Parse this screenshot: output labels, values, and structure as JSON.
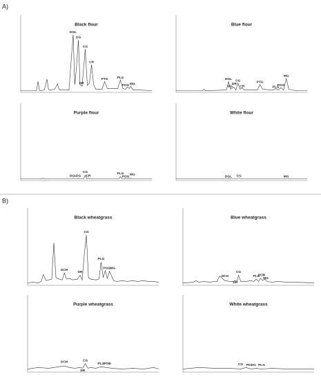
{
  "labels": [
    "A)",
    "B)"
  ],
  "chart_data": [
    {
      "type": "line",
      "title": "Black flour",
      "xlim": [
        0,
        25
      ],
      "ylim": [
        0,
        100
      ],
      "series": [
        {
          "color": "#333333",
          "x": [
            0,
            2,
            3,
            3.3,
            3.6,
            4.5,
            5,
            5.3,
            5.6,
            6.5,
            7,
            7.3,
            7.6,
            9.2,
            9.6,
            10,
            10.3,
            10.6,
            11,
            11.3,
            11.7,
            12.3,
            12.7,
            13.1,
            13.5,
            13.9,
            14.3,
            15.5,
            16,
            16.5,
            18.5,
            19,
            19.5,
            20,
            20.3,
            20.7,
            21,
            21.4,
            23,
            25
          ],
          "values": [
            2,
            2,
            2,
            14,
            2,
            3,
            17,
            4,
            3,
            4,
            11,
            4,
            3,
            3,
            40,
            75,
            10,
            30,
            68,
            10,
            8,
            56,
            9,
            12,
            36,
            10,
            4,
            4,
            14,
            5,
            5,
            16,
            5,
            4,
            7,
            5,
            8,
            3,
            3,
            2
          ]
        }
      ],
      "annotations": [
        {
          "text": "DGL",
          "x": 10,
          "y": 78
        },
        {
          "text": "DG",
          "x": 11,
          "y": 71
        },
        {
          "text": "CG",
          "x": 12.3,
          "y": 59
        },
        {
          "text": "CR",
          "x": 13.5,
          "y": 39
        },
        {
          "text": "DR",
          "x": 11.6,
          "y": 12
        },
        {
          "text": "PTG",
          "x": 16,
          "y": 17
        },
        {
          "text": "PLG",
          "x": 19,
          "y": 19
        },
        {
          "text": "POG",
          "x": 20,
          "y": 9
        },
        {
          "text": "MG",
          "x": 21.3,
          "y": 11
        }
      ]
    },
    {
      "type": "line",
      "title": "Blue flour",
      "xlim": [
        0,
        25
      ],
      "ylim": [
        0,
        100
      ],
      "series": [
        {
          "color": "#333333",
          "x": [
            0,
            4,
            5,
            5.3,
            5.6,
            9,
            9.6,
            10,
            10.4,
            11,
            11.4,
            11.8,
            12.2,
            12.6,
            13,
            13.4,
            13.8,
            15.5,
            16,
            16.5,
            18.5,
            19,
            19.5,
            20,
            20.5,
            21,
            21.5,
            23,
            25
          ],
          "values": [
            2,
            2,
            2,
            4,
            2,
            3,
            3,
            14,
            4,
            7,
            3,
            12,
            4,
            6,
            3,
            3,
            3,
            3,
            10,
            4,
            3,
            5,
            3,
            6,
            3,
            18,
            4,
            2,
            2
          ]
        }
      ],
      "annotations": [
        {
          "text": "DGL",
          "x": 10,
          "y": 17
        },
        {
          "text": "DG",
          "x": 10.3,
          "y": 8
        },
        {
          "text": "DR",
          "x": 11.1,
          "y": 11
        },
        {
          "text": "CG",
          "x": 11.8,
          "y": 15
        },
        {
          "text": "CR",
          "x": 12.6,
          "y": 8
        },
        {
          "text": "PTG",
          "x": 16,
          "y": 13
        },
        {
          "text": "PLG",
          "x": 19,
          "y": 7
        },
        {
          "text": "POG",
          "x": 20,
          "y": 9
        },
        {
          "text": "MG",
          "x": 21,
          "y": 21
        }
      ]
    },
    {
      "type": "line",
      "title": "Purple flour",
      "xlim": [
        0,
        25
      ],
      "ylim": [
        0,
        100
      ],
      "series": [
        {
          "color": "#333333",
          "x": [
            0,
            4,
            4.3,
            4.6,
            9.7,
            10,
            10.3,
            10.8,
            11,
            11.3,
            12,
            12.3,
            12.6,
            12.9,
            13.2,
            18.7,
            19,
            19.3,
            19.8,
            20,
            20.3,
            20.8,
            21,
            21.3,
            25
          ],
          "values": [
            2,
            2,
            3,
            2,
            2,
            3,
            2,
            2,
            3,
            2,
            2,
            7,
            2,
            3,
            2,
            2,
            5,
            2,
            2,
            3,
            2,
            2,
            3,
            2,
            2
          ]
        }
      ],
      "annotations": [
        {
          "text": "DGL",
          "x": 10,
          "y": 6
        },
        {
          "text": "DG",
          "x": 11,
          "y": 6
        },
        {
          "text": "CG",
          "x": 12.3,
          "y": 11
        },
        {
          "text": "CR",
          "x": 12.9,
          "y": 6
        },
        {
          "text": "PLG",
          "x": 19,
          "y": 9
        },
        {
          "text": "POG",
          "x": 20,
          "y": 5
        },
        {
          "text": "MG",
          "x": 21.3,
          "y": 8
        }
      ]
    },
    {
      "type": "line",
      "title": "White flour",
      "xlim": [
        0,
        25
      ],
      "ylim": [
        0,
        100
      ],
      "series": [
        {
          "color": "#333333",
          "x": [
            0,
            10,
            11.5,
            12,
            12.5,
            21,
            25
          ],
          "values": [
            2,
            2,
            2,
            3,
            2,
            2,
            2
          ]
        }
      ],
      "annotations": [
        {
          "text": "DGL",
          "x": 10,
          "y": 5
        },
        {
          "text": "CG",
          "x": 12,
          "y": 6
        },
        {
          "text": "MG",
          "x": 21,
          "y": 5
        }
      ]
    },
    {
      "type": "line",
      "title": "Black wheatgrass",
      "xlim": [
        0,
        25
      ],
      "ylim": [
        0,
        100
      ],
      "series": [
        {
          "color": "#333333",
          "x": [
            0,
            1,
            2,
            2.6,
            3,
            3.5,
            4,
            4.6,
            5,
            5.4,
            6,
            6.6,
            7,
            7.4,
            8,
            8.6,
            9.5,
            10,
            10.4,
            10.8,
            11.2,
            11.6,
            12,
            13,
            13.6,
            14,
            14.4,
            14.8,
            15.2,
            15.6,
            16,
            16.4,
            17,
            18,
            19,
            20,
            21,
            22,
            23,
            24,
            25
          ],
          "values": [
            3,
            4,
            3,
            5,
            14,
            6,
            7,
            8,
            55,
            10,
            8,
            7,
            16,
            8,
            9,
            7,
            8,
            13,
            7,
            40,
            65,
            10,
            8,
            7,
            8,
            30,
            10,
            19,
            9,
            18,
            12,
            6,
            5,
            6,
            5,
            6,
            5,
            6,
            5,
            5,
            4
          ]
        }
      ],
      "annotations": [
        {
          "text": "DCH",
          "x": 7,
          "y": 20
        },
        {
          "text": "DR",
          "x": 10,
          "y": 17
        },
        {
          "text": "CG",
          "x": 11.2,
          "y": 69
        },
        {
          "text": "PLG",
          "x": 14,
          "y": 34
        },
        {
          "text": "POG",
          "x": 15.1,
          "y": 22
        },
        {
          "text": "MG",
          "x": 16.2,
          "y": 22
        }
      ]
    },
    {
      "type": "line",
      "title": "Blue wheatgrass",
      "xlim": [
        0,
        25
      ],
      "ylim": [
        0,
        100
      ],
      "series": [
        {
          "color": "#333333",
          "x": [
            0,
            2,
            2.5,
            3,
            4,
            5,
            6,
            6.5,
            7,
            8,
            9,
            9.5,
            10,
            10.3,
            10.6,
            11,
            12,
            13,
            13.5,
            14,
            14.4,
            14.8,
            15.2,
            15.6,
            16,
            17,
            18,
            20,
            22,
            25
          ],
          "values": [
            3,
            4,
            6,
            4,
            5,
            4,
            5,
            5,
            12,
            6,
            5,
            5,
            6,
            5,
            13,
            5,
            5,
            6,
            5,
            8,
            5,
            9,
            6,
            8,
            5,
            4,
            5,
            4,
            4,
            3
          ]
        }
      ],
      "annotations": [
        {
          "text": "DCH",
          "x": 8,
          "y": 12
        },
        {
          "text": "DR",
          "x": 10,
          "y": 4
        },
        {
          "text": "CG",
          "x": 10.6,
          "y": 17
        },
        {
          "text": "PLG",
          "x": 14,
          "y": 12
        },
        {
          "text": "POB",
          "x": 15,
          "y": 13
        },
        {
          "text": "MG",
          "x": 15.8,
          "y": 9
        }
      ]
    },
    {
      "type": "line",
      "title": "Purple wheatgrass",
      "xlim": [
        0,
        25
      ],
      "ylim": [
        0,
        100
      ],
      "series": [
        {
          "color": "#333333",
          "x": [
            0,
            2,
            4,
            6,
            7,
            8,
            9,
            10,
            10.5,
            11,
            11.5,
            12,
            13,
            14,
            15,
            16,
            18,
            20,
            22,
            24,
            25
          ],
          "values": [
            4,
            6,
            5,
            7,
            8,
            6,
            5,
            6,
            5,
            11,
            5,
            6,
            5,
            7,
            6,
            5,
            4,
            5,
            4,
            6,
            4
          ]
        }
      ],
      "annotations": [
        {
          "text": "DCH",
          "x": 7,
          "y": 13
        },
        {
          "text": "DR",
          "x": 10.5,
          "y": 2
        },
        {
          "text": "CG",
          "x": 11,
          "y": 15
        },
        {
          "text": "PLG",
          "x": 14,
          "y": 11
        },
        {
          "text": "POB",
          "x": 15.2,
          "y": 11
        }
      ]
    },
    {
      "type": "line",
      "title": "White wheatgrass",
      "xlim": [
        0,
        25
      ],
      "ylim": [
        0,
        100
      ],
      "series": [
        {
          "color": "#333333",
          "x": [
            0,
            3,
            6,
            9,
            11,
            12,
            13,
            14,
            15,
            17,
            20,
            25
          ],
          "values": [
            4,
            6,
            5,
            5,
            4,
            6,
            4,
            5,
            4,
            5,
            4,
            4
          ]
        }
      ],
      "annotations": [
        {
          "text": "CG",
          "x": 11,
          "y": 10
        },
        {
          "text": "PODG",
          "x": 13,
          "y": 9
        },
        {
          "text": "PLG",
          "x": 15,
          "y": 9
        }
      ]
    }
  ]
}
